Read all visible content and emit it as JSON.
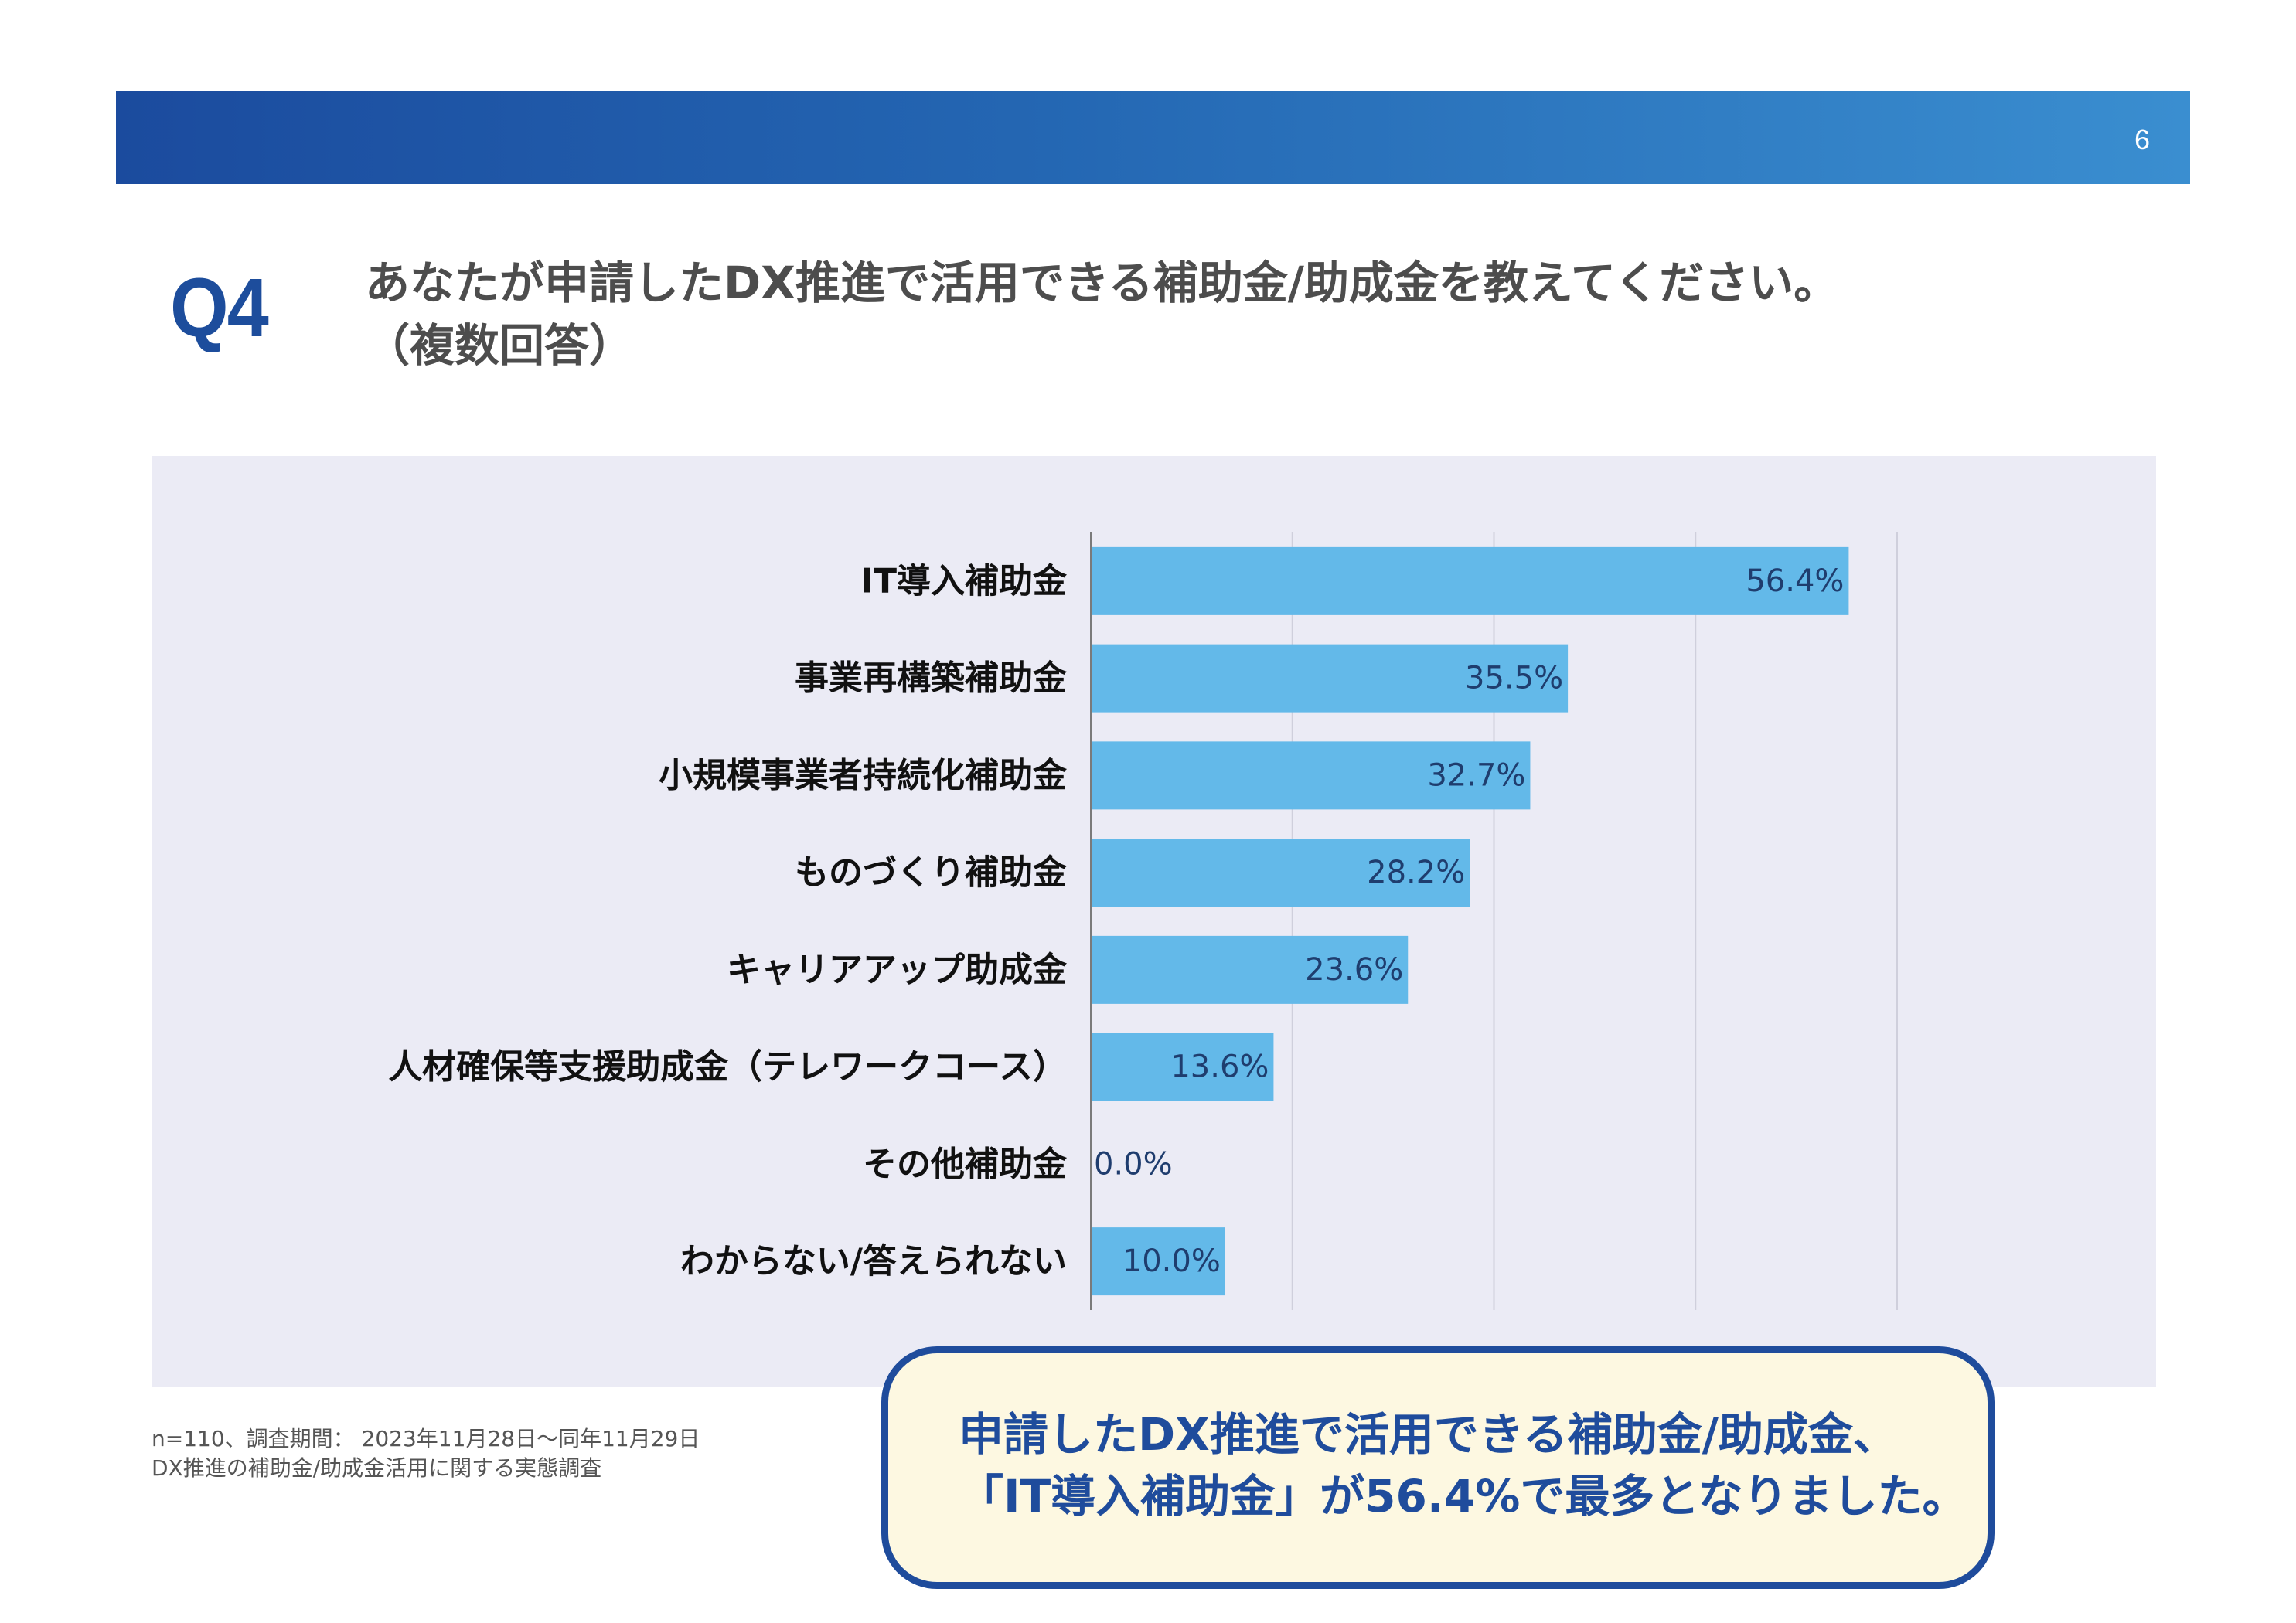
{
  "header": {
    "page_number": "6"
  },
  "question": {
    "number": "Q4",
    "line1": "あなたが申請したDX推進で活用できる補助金/助成金を教えてください。",
    "line2": "（複数回答）"
  },
  "chart_data": {
    "type": "bar",
    "orientation": "horizontal",
    "categories": [
      "IT導入補助金",
      "事業再構築補助金",
      "小規模事業者持続化補助金",
      "ものづくり補助金",
      "キャリアアップ助成金",
      "人材確保等支援助成金（テレワークコース）",
      "その他補助金",
      "わからない/答えられない"
    ],
    "values": [
      56.4,
      35.5,
      32.7,
      28.2,
      23.6,
      13.6,
      0.0,
      10.0
    ],
    "value_labels": [
      "56.4%",
      "35.5%",
      "32.7%",
      "28.2%",
      "23.6%",
      "13.6%",
      "0.0%",
      "10.0%"
    ],
    "xlim": [
      0,
      60
    ],
    "grid": true,
    "grid_step": 15,
    "bar_color": "#63b9e9",
    "value_label_color": "#1f3d6e"
  },
  "footnote": {
    "line1": "n=110、調査期間： 2023年11月28日～同年11月29日",
    "line2": "DX推進の補助金/助成金活用に関する実態調査"
  },
  "callout": {
    "line1": "申請したDX推進で活用できる補助金/助成金、",
    "line2": "「IT導入補助金」が56.4%で最多となりました。"
  },
  "colors": {
    "accent": "#1f4c9c",
    "header_gradient_start": "#1b4b9e",
    "header_gradient_end": "#3a8ed0",
    "panel_background": "#ebebf5",
    "callout_background": "#fdf8e1"
  }
}
